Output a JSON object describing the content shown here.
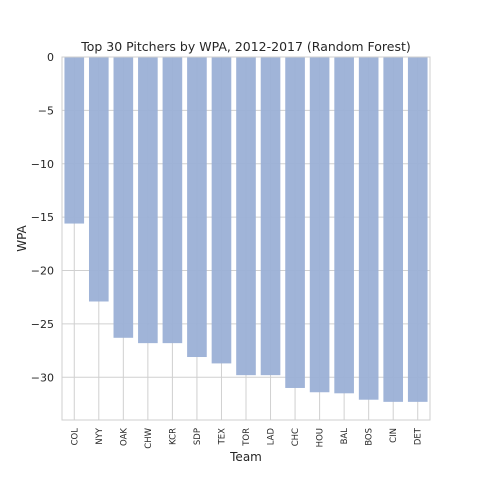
{
  "chart_data": {
    "type": "bar",
    "title": "Top 30 Pitchers by WPA, 2012-2017 (Random Forest)",
    "xlabel": "Team",
    "ylabel": "WPA",
    "categories": [
      "COL",
      "NYY",
      "OAK",
      "CHW",
      "KCR",
      "SDP",
      "TEX",
      "TOR",
      "LAD",
      "CHC",
      "HOU",
      "BAL",
      "BOS",
      "CIN",
      "DET"
    ],
    "values": [
      -15.6,
      -22.9,
      -26.3,
      -26.8,
      -26.8,
      -28.1,
      -28.7,
      -29.8,
      -29.8,
      -31.0,
      -31.4,
      -31.5,
      -32.1,
      -32.3,
      -32.3
    ],
    "ylim": [
      -34,
      0
    ],
    "yticks": [
      0,
      -5,
      -10,
      -15,
      -20,
      -25,
      -30
    ],
    "ytick_labels": [
      "0",
      "−5",
      "−10",
      "−15",
      "−20",
      "−25",
      "−30"
    ],
    "grid": true,
    "bar_color": "#9bb0d6",
    "grid_color": "#d0d0d0"
  }
}
